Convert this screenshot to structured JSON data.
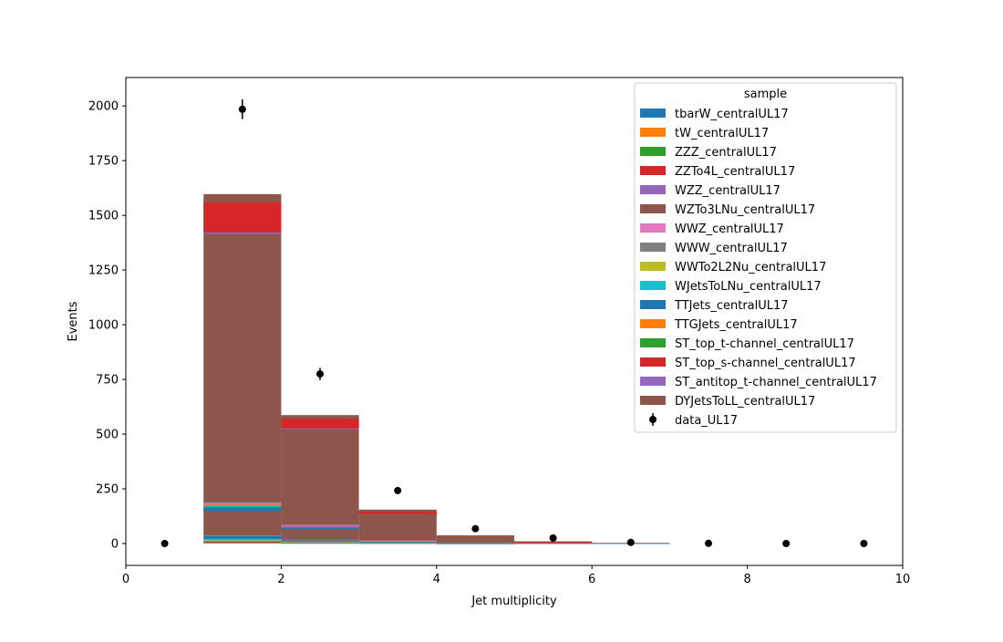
{
  "chart_data": {
    "type": "bar",
    "xlabel": "Jet multiplicity",
    "ylabel": "Events",
    "xlim": [
      0,
      10
    ],
    "ylim": [
      -100,
      2130
    ],
    "x_ticks": [
      0,
      2,
      4,
      6,
      8,
      10
    ],
    "y_ticks": [
      0,
      250,
      500,
      750,
      1000,
      1250,
      1500,
      1750,
      2000
    ],
    "grid": false,
    "legend_title": "sample",
    "legend_position": "top-right",
    "bin_edges": [
      0,
      1,
      2,
      3,
      4,
      5,
      6,
      7,
      8,
      9,
      10
    ],
    "stacked": true,
    "series": [
      {
        "name": "tbarW_centralUL17",
        "color": "#1f77b4",
        "values": [
          0,
          2,
          1,
          0.5,
          0.3,
          0,
          0,
          0,
          0,
          0
        ]
      },
      {
        "name": "tW_centralUL17",
        "color": "#ff7f0e",
        "values": [
          0,
          2,
          1,
          0.5,
          0.3,
          0,
          0,
          0,
          0,
          0
        ]
      },
      {
        "name": "ZZZ_centralUL17",
        "color": "#2ca02c",
        "values": [
          0,
          0,
          0,
          0,
          0,
          0,
          0,
          0,
          0,
          0
        ]
      },
      {
        "name": "ZZTo4L_centralUL17",
        "color": "#d62728",
        "values": [
          0,
          2,
          1,
          1,
          0.5,
          0.2,
          0,
          0,
          0,
          0
        ]
      },
      {
        "name": "WZZ_centralUL17",
        "color": "#9467bd",
        "values": [
          0,
          0,
          0,
          0,
          0,
          0,
          0,
          0,
          0,
          0
        ]
      },
      {
        "name": "WZTo3LNu_centralUL17",
        "color": "#8c564b",
        "values": [
          0,
          5,
          2,
          1,
          0.5,
          0.2,
          0,
          0,
          0,
          0
        ]
      },
      {
        "name": "WWZ_centralUL17",
        "color": "#e377c2",
        "values": [
          0,
          0,
          0,
          0,
          0,
          0,
          0,
          0,
          0,
          0
        ]
      },
      {
        "name": "WWW_centralUL17",
        "color": "#7f7f7f",
        "values": [
          0,
          0,
          0,
          0,
          0,
          0,
          0,
          0,
          0,
          0
        ]
      },
      {
        "name": "WWTo2L2Nu_centralUL17",
        "color": "#bcbd22",
        "values": [
          0,
          4,
          1,
          0.5,
          0.2,
          0,
          0,
          0,
          0,
          0
        ]
      },
      {
        "name": "WJetsToLNu_centralUL17",
        "color": "#17becf",
        "values": [
          0,
          6,
          2,
          1,
          0.3,
          0,
          0,
          0,
          0,
          0
        ]
      },
      {
        "name": "TTJets_centralUL17",
        "color": "#1f77b4",
        "values": [
          0,
          15,
          8,
          5,
          2,
          0.5,
          0.2,
          0,
          0,
          0
        ]
      },
      {
        "name": "TTGJets_centralUL17",
        "color": "#ff7f0e",
        "values": [
          0,
          1,
          1,
          0.5,
          0.2,
          0,
          0,
          0,
          0,
          0
        ]
      },
      {
        "name": "ST_top_t-channel_centralUL17",
        "color": "#2ca02c",
        "values": [
          0,
          0,
          0,
          0,
          0,
          0,
          0,
          0,
          0,
          0
        ]
      },
      {
        "name": "ST_top_s-channel_centralUL17",
        "color": "#d62728",
        "values": [
          0,
          0,
          0,
          0,
          0,
          0,
          0,
          0,
          0,
          0
        ]
      },
      {
        "name": "ST_antitop_t-channel_centralUL17",
        "color": "#9467bd",
        "values": [
          0,
          0,
          0,
          0,
          0,
          0,
          0,
          0,
          0,
          0
        ]
      },
      {
        "name": "DYJetsToLL_centralUL17",
        "color": "#8c564b",
        "values": [
          0,
          1560,
          570,
          145,
          33,
          9,
          3,
          0,
          0,
          0
        ]
      }
    ],
    "data": {
      "name": "data_UL17",
      "x": [
        0.5,
        1.5,
        2.5,
        3.5,
        4.5,
        5.5,
        6.5,
        7.5,
        8.5,
        9.5
      ],
      "y": [
        0,
        1985,
        775,
        242,
        68,
        25,
        5,
        1,
        0,
        0
      ],
      "yerr": [
        0,
        45,
        28,
        16,
        8,
        5,
        2,
        1,
        0,
        0
      ]
    }
  }
}
